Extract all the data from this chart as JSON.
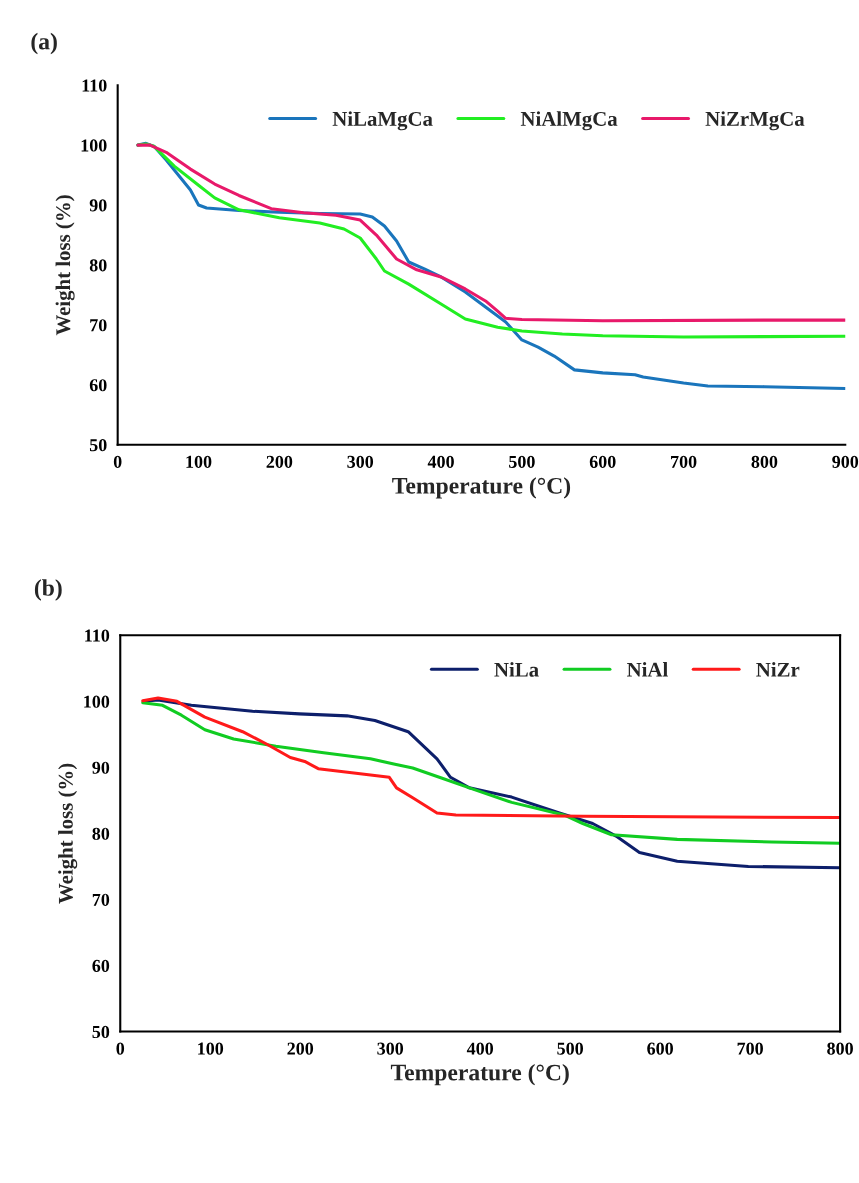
{
  "chart_data": [
    {
      "type": "line",
      "title": "(a)",
      "xlabel": "Temperature (°C)",
      "ylabel": "Weight loss (%)",
      "xlim": [
        0,
        900
      ],
      "xticks": [
        0,
        100,
        200,
        300,
        400,
        500,
        600,
        700,
        800,
        900
      ],
      "ylim": [
        50,
        110
      ],
      "yticks": [
        50,
        60,
        70,
        80,
        90,
        100,
        110
      ],
      "legend": "top right",
      "grid": false,
      "series": [
        {
          "name": "NiLaMgCa",
          "color": "#1a75bc",
          "x": [
            25,
            35,
            45,
            60,
            75,
            90,
            100,
            110,
            150,
            200,
            250,
            300,
            315,
            330,
            345,
            360,
            380,
            400,
            430,
            460,
            480,
            500,
            520,
            540,
            565,
            600,
            640,
            650,
            700,
            730,
            800,
            900
          ],
          "values": [
            100,
            100.3,
            99.8,
            97.5,
            95,
            92.5,
            90,
            89.5,
            89.1,
            88.8,
            88.6,
            88.5,
            88,
            86.5,
            84,
            80.5,
            79.3,
            78,
            75.5,
            72.5,
            70.5,
            67.5,
            66.3,
            64.8,
            62.5,
            62,
            61.7,
            61.3,
            60.3,
            59.8,
            59.7,
            59.4
          ]
        },
        {
          "name": "NiAlMgCa",
          "color": "#22ee22",
          "x": [
            25,
            35,
            45,
            70,
            100,
            120,
            150,
            200,
            250,
            280,
            300,
            320,
            330,
            360,
            400,
            430,
            470,
            500,
            550,
            600,
            700,
            900
          ],
          "values": [
            100,
            100.2,
            99.8,
            96.5,
            93.3,
            91.2,
            89.2,
            87.9,
            87,
            86,
            84.5,
            81,
            79,
            76.8,
            73.5,
            71,
            69.6,
            69,
            68.5,
            68.2,
            68,
            68.1
          ]
        },
        {
          "name": "NiZrMgCa",
          "color": "#e8196a",
          "x": [
            25,
            40,
            60,
            90,
            120,
            150,
            190,
            230,
            270,
            300,
            320,
            345,
            370,
            400,
            430,
            455,
            470,
            480,
            500,
            600,
            800,
            900
          ],
          "values": [
            100,
            100,
            98.8,
            96,
            93.5,
            91.6,
            89.4,
            88.7,
            88.3,
            87.5,
            85,
            81,
            79.2,
            78,
            76,
            74,
            72.3,
            71.1,
            70.9,
            70.7,
            70.8,
            70.8
          ]
        }
      ]
    },
    {
      "type": "line",
      "title": "(b)",
      "xlabel": "Temperature (°C)",
      "ylabel": "Weight loss (%)",
      "xlim": [
        0,
        800
      ],
      "xticks": [
        0,
        100,
        200,
        300,
        400,
        500,
        600,
        700,
        800
      ],
      "ylim": [
        50,
        110
      ],
      "yticks": [
        50,
        60,
        70,
        80,
        90,
        100,
        110
      ],
      "legend": "top right",
      "grid": false,
      "series": [
        {
          "name": "NiLa",
          "color": "#0d1f6b",
          "x": [
            26,
            42,
            79,
            147,
            199,
            252,
            283,
            320,
            352,
            367,
            388,
            435,
            488,
            525,
            551,
            577,
            619,
            698,
            800
          ],
          "values": [
            100,
            100.2,
            99.4,
            98.5,
            98.1,
            97.8,
            97.1,
            95.4,
            91.3,
            88.5,
            86.9,
            85.5,
            83.1,
            81.5,
            79.6,
            77.1,
            75.8,
            75,
            74.8
          ]
        },
        {
          "name": "NiAl",
          "color": "#11cc22",
          "x": [
            25,
            47,
            68,
            94,
            126,
            173,
            226,
            278,
            304,
            325,
            357,
            388,
            435,
            493,
            514,
            546,
            619,
            724,
            800
          ],
          "values": [
            99.8,
            99.4,
            97.9,
            95.7,
            94.3,
            93.2,
            92.2,
            91.3,
            90.5,
            89.9,
            88.4,
            86.9,
            84.7,
            82.8,
            81.5,
            79.8,
            79.1,
            78.7,
            78.5
          ]
        },
        {
          "name": "NiZr",
          "color": "#ff1a1a",
          "x": [
            25,
            42,
            63,
            94,
            136,
            163,
            189,
            205,
            220,
            262,
            299,
            307,
            325,
            352,
            373,
            514,
            800
          ],
          "values": [
            100.1,
            100.5,
            100,
            97.6,
            95.4,
            93.5,
            91.5,
            90.9,
            89.8,
            89.1,
            88.5,
            86.9,
            85.4,
            83.1,
            82.8,
            82.6,
            82.4
          ]
        }
      ]
    }
  ]
}
